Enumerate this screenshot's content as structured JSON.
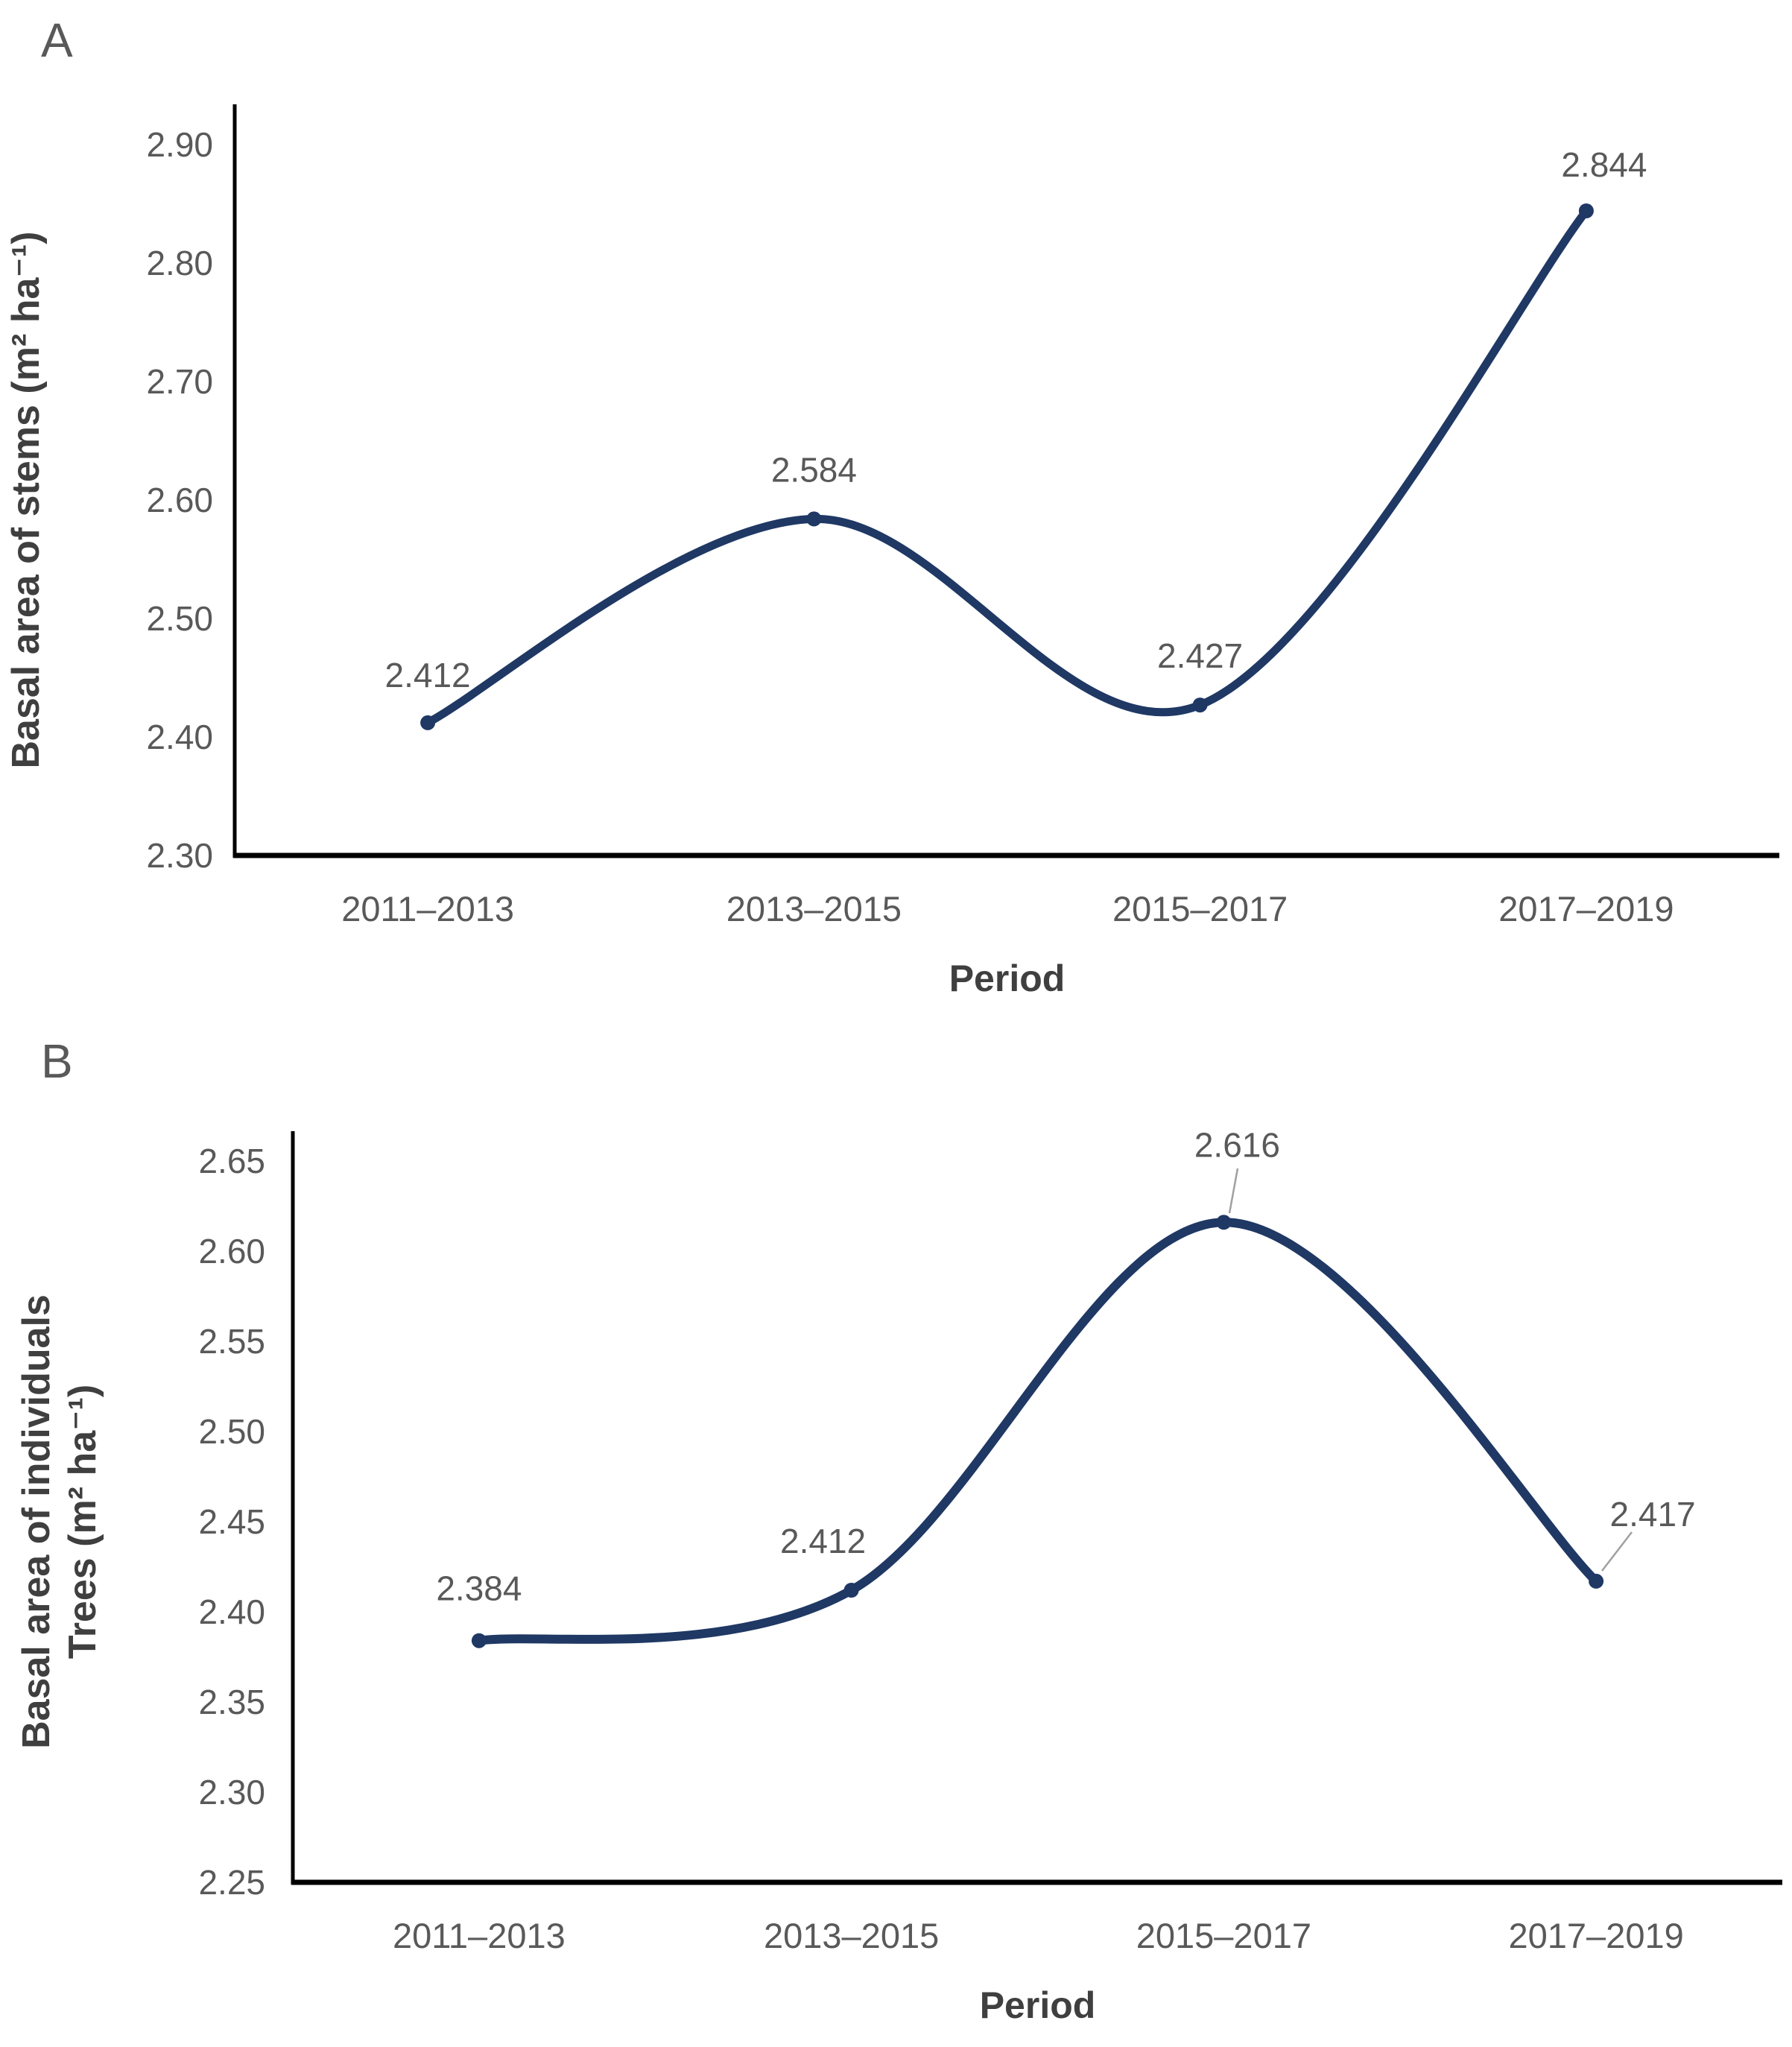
{
  "figure": {
    "panels": [
      {
        "letter": "A"
      },
      {
        "letter": "B"
      }
    ]
  },
  "colors": {
    "line": "#1f3864",
    "marker": "#1f3864",
    "tick_text": "#595959",
    "data_label_text": "#595959",
    "axis_title_text": "#3f3f3f",
    "panel_letter_text": "#595959",
    "axis_line": "#000000",
    "leader_line": "#a0a0a0",
    "background": "#ffffff"
  },
  "chart_data": [
    {
      "panel": "A",
      "type": "line",
      "title": "",
      "categories": [
        "2011–2013",
        "2013–2015",
        "2015–2017",
        "2017–2019"
      ],
      "series": [
        {
          "name": "Basal area of stems",
          "values": [
            2.412,
            2.584,
            2.427,
            2.844
          ]
        }
      ],
      "point_labels": [
        "2.412",
        "2.584",
        "2.427",
        "2.844"
      ],
      "xlabel": "Period",
      "ylabel": "Basal area of stems (m² ha⁻¹)",
      "ylabel_lines": [
        "Basal area of stems (m² ha⁻¹)"
      ],
      "ylim": [
        2.3,
        2.9
      ],
      "ytick_interval": 0.1,
      "ytick_labels": [
        "2.30",
        "2.40",
        "2.50",
        "2.60",
        "2.70",
        "2.80",
        "2.90"
      ],
      "grid": false,
      "legend": "none",
      "line_style": "smooth",
      "marker": "circle"
    },
    {
      "panel": "B",
      "type": "line",
      "title": "",
      "categories": [
        "2011–2013",
        "2013–2015",
        "2015–2017",
        "2017–2019"
      ],
      "series": [
        {
          "name": "Basal area of individuals trees",
          "values": [
            2.384,
            2.412,
            2.616,
            2.417
          ]
        }
      ],
      "point_labels": [
        "2.384",
        "2.412",
        "2.616",
        "2.417"
      ],
      "xlabel": "Period",
      "ylabel": "Basal area of individuals Trees (m² ha⁻¹)",
      "ylabel_lines": [
        "Basal area of individuals",
        "Trees (m² ha⁻¹)"
      ],
      "ylim": [
        2.25,
        2.65
      ],
      "ytick_interval": 0.05,
      "ytick_labels": [
        "2.25",
        "2.30",
        "2.35",
        "2.40",
        "2.45",
        "2.50",
        "2.55",
        "2.60",
        "2.65"
      ],
      "grid": false,
      "legend": "none",
      "line_style": "smooth",
      "marker": "circle"
    }
  ]
}
